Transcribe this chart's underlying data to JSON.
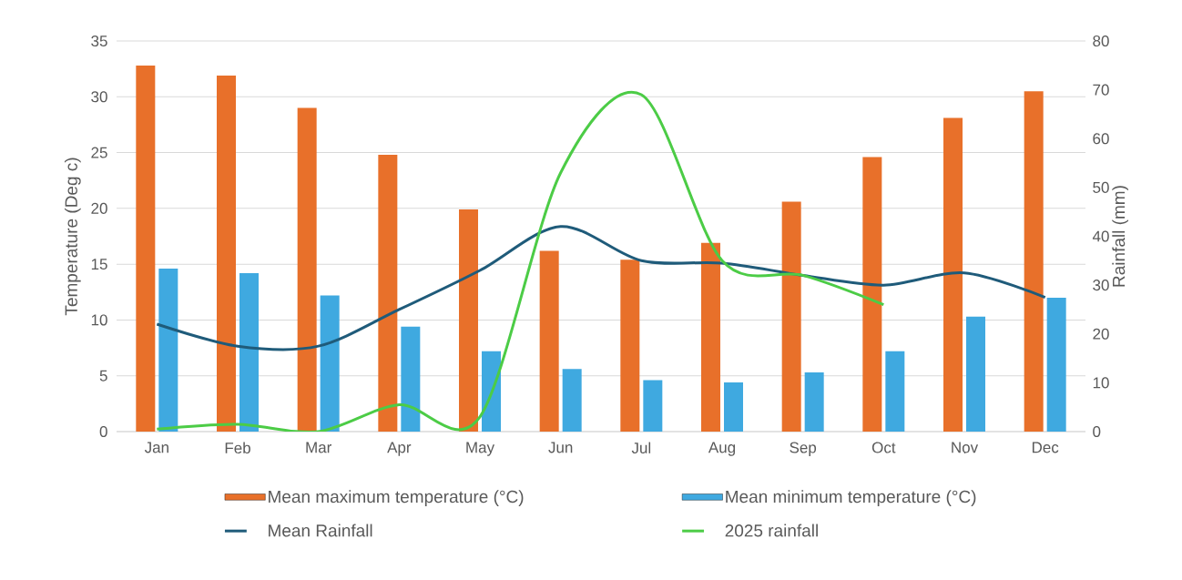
{
  "chart_data": {
    "type": "bar",
    "categories": [
      "Jan",
      "Feb",
      "Mar",
      "Apr",
      "May",
      "Jun",
      "Jul",
      "Aug",
      "Sep",
      "Oct",
      "Nov",
      "Dec"
    ],
    "series": [
      {
        "name": "Mean maximum temperature (°C)",
        "color": "#e8702a",
        "values": [
          32.8,
          31.9,
          29.0,
          24.8,
          19.9,
          16.2,
          15.4,
          16.9,
          20.6,
          24.6,
          28.1,
          30.5
        ]
      },
      {
        "name": "Mean minimum temperature (°C)",
        "color": "#3fa9e0",
        "values": [
          14.6,
          14.2,
          12.2,
          9.4,
          7.2,
          5.6,
          4.6,
          4.4,
          5.3,
          7.2,
          10.3,
          12.0
        ]
      },
      {
        "name": "Mean Rainfall",
        "type": "line",
        "axis": "y2",
        "color": "#1f5b7a",
        "values": [
          22,
          17.5,
          17.5,
          25,
          33,
          42,
          35,
          34.5,
          32,
          30,
          32.5,
          27.5
        ]
      },
      {
        "name": "2025 rainfall",
        "type": "line",
        "axis": "y2",
        "color": "#4ccc46",
        "values": [
          0.5,
          1.5,
          0,
          5.5,
          3,
          53,
          69,
          35,
          32,
          26,
          null,
          null
        ]
      }
    ],
    "ylabel": "Temperature (Deg c)",
    "y2label": "Rainfall (mm)",
    "ylim": [
      0,
      35
    ],
    "yticks": [
      0,
      5,
      10,
      15,
      20,
      25,
      30,
      35
    ],
    "y2lim": [
      0,
      80
    ],
    "y2ticks": [
      0,
      10,
      20,
      30,
      40,
      50,
      60,
      70,
      80
    ],
    "grid": "y",
    "legend": "bottom"
  }
}
